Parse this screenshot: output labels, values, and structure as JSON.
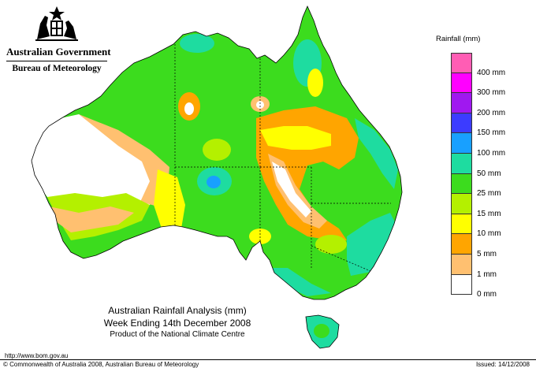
{
  "header": {
    "government": "Australian Government",
    "bureau": "Bureau of Meteorology"
  },
  "legend": {
    "title": "Rainfall (mm)",
    "entries": [
      {
        "label": "400 mm",
        "color": "#ff5db4"
      },
      {
        "label": "300 mm",
        "color": "#ff00ff"
      },
      {
        "label": "200 mm",
        "color": "#a018f0"
      },
      {
        "label": "150 mm",
        "color": "#3c3cff"
      },
      {
        "label": "100 mm",
        "color": "#18a0ff"
      },
      {
        "label": "50 mm",
        "color": "#1edca0"
      },
      {
        "label": "25 mm",
        "color": "#3cdc1e"
      },
      {
        "label": "15 mm",
        "color": "#b4f000"
      },
      {
        "label": "10 mm",
        "color": "#ffff00"
      },
      {
        "label": "5 mm",
        "color": "#ffa500"
      },
      {
        "label": "1 mm",
        "color": "#ffc070"
      },
      {
        "label": "0 mm",
        "color": "#ffffff"
      }
    ]
  },
  "caption": {
    "line1": "Australian Rainfall Analysis (mm)",
    "line2": "Week Ending 14th December 2008",
    "line3": "Product of the National Climate Centre"
  },
  "footer": {
    "url": "http://www.bom.gov.au",
    "copyright": "© Commonwealth of Australia 2008, Australian Bureau of Meteorology",
    "issued": "Issued: 14/12/2008"
  },
  "map": {
    "colors": {
      "outline": "#000000",
      "nodata": "#ffffff",
      "dry": "#ffc070",
      "orange": "#ffa500",
      "yellow": "#ffff00",
      "lime": "#b4f000",
      "green": "#3cdc1e",
      "teal": "#1edca0",
      "blue": "#18a0ff"
    }
  }
}
